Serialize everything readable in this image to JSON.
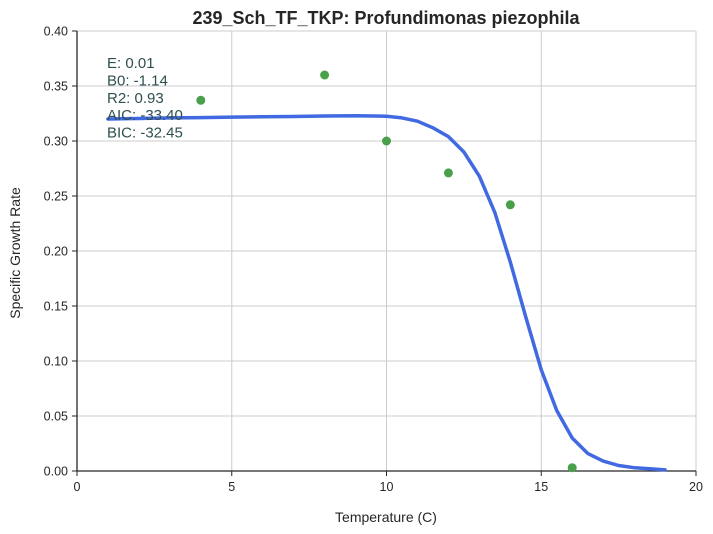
{
  "chart_data": {
    "type": "scatter",
    "title": "239_Sch_TF_TKP: Profundimonas piezophila",
    "xlabel": "Temperature (C)",
    "ylabel": "Specific Growth Rate",
    "xlim": [
      0,
      20
    ],
    "ylim": [
      0,
      0.4
    ],
    "xticks": [
      0,
      5,
      10,
      15,
      20
    ],
    "xtick_labels": [
      "0",
      "5",
      "10",
      "15",
      "20"
    ],
    "yticks": [
      0,
      0.05,
      0.1,
      0.15,
      0.2,
      0.25,
      0.3,
      0.35,
      0.4
    ],
    "ytick_labels": [
      "0.00",
      "0.05",
      "0.10",
      "0.15",
      "0.20",
      "0.25",
      "0.30",
      "0.35",
      "0.40"
    ],
    "grid": true,
    "observations": {
      "x": [
        4,
        8,
        10,
        12,
        14,
        16
      ],
      "y": [
        0.337,
        0.36,
        0.3,
        0.271,
        0.242,
        0.003
      ],
      "color": "#4aa04a"
    },
    "fitted_curve": {
      "x": [
        1,
        2,
        3,
        4,
        5,
        6,
        7,
        8,
        9,
        10,
        10.5,
        11,
        11.5,
        12,
        12.5,
        13,
        13.5,
        14,
        14.5,
        15,
        15.5,
        16,
        16.5,
        17,
        17.5,
        18,
        18.5,
        19
      ],
      "y": [
        0.32,
        0.3205,
        0.321,
        0.3213,
        0.3217,
        0.322,
        0.3223,
        0.3227,
        0.323,
        0.3225,
        0.321,
        0.318,
        0.312,
        0.304,
        0.29,
        0.268,
        0.235,
        0.19,
        0.14,
        0.092,
        0.055,
        0.03,
        0.016,
        0.009,
        0.005,
        0.003,
        0.002,
        0.001
      ],
      "color": "#4169e1"
    },
    "annotations": [
      "E:  0.01",
      "B0:  -1.14",
      "R2:  0.93",
      "AIC: -33.40",
      "BIC: -32.45"
    ]
  }
}
